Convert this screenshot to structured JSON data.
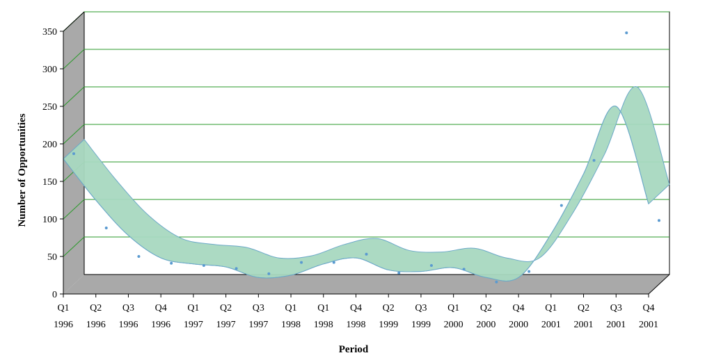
{
  "chart_data": {
    "type": "area",
    "title": "",
    "xlabel": "Period",
    "ylabel": "Number of Opportunities",
    "ylim": [
      0,
      350
    ],
    "yticks": [
      0,
      50,
      100,
      150,
      200,
      250,
      300,
      350
    ],
    "grid": true,
    "legend": "none",
    "categories": [
      [
        "Q1",
        "1996"
      ],
      [
        "Q2",
        "1996"
      ],
      [
        "Q3",
        "1996"
      ],
      [
        "Q4",
        "1996"
      ],
      [
        "Q1",
        "1997"
      ],
      [
        "Q2",
        "1997"
      ],
      [
        "Q3",
        "1997"
      ],
      [
        "Q1",
        "1998"
      ],
      [
        "Q1",
        "1998"
      ],
      [
        "Q4",
        "1998"
      ],
      [
        "Q2",
        "1999"
      ],
      [
        "Q3",
        "1999"
      ],
      [
        "Q1",
        "2000"
      ],
      [
        "Q2",
        "2000"
      ],
      [
        "Q4",
        "2000"
      ],
      [
        "Q1",
        "2001"
      ],
      [
        "Q2",
        "2001"
      ],
      [
        "Q3",
        "2001"
      ],
      [
        "Q4",
        "2001"
      ]
    ],
    "series": [
      {
        "values": [
          174,
          75,
          37,
          28,
          25,
          21,
          14,
          29,
          29,
          40,
          15,
          25,
          20,
          3,
          17,
          105,
          165,
          335,
          85
        ],
        "smoothed": [
          180,
          125,
          78,
          48,
          40,
          36,
          22,
          25,
          40,
          48,
          32,
          30,
          35,
          22,
          22,
          80,
          160,
          250,
          120
        ]
      }
    ],
    "colors": {
      "ribbon_fill": "#a8d8c0",
      "ribbon_edge": "#6ba8c8",
      "marker": "#5a9ad0",
      "gridline": "#2a9a2a",
      "wall": "#a9a9a9",
      "floor": "#a9a9a9",
      "axis": "#000000"
    }
  }
}
